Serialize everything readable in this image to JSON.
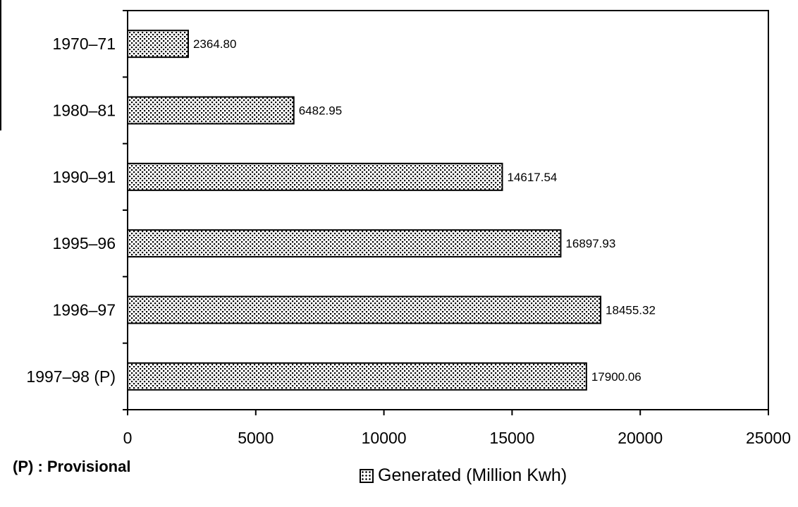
{
  "chart_data": {
    "type": "bar",
    "orientation": "horizontal",
    "categories": [
      "1970–71",
      "1980–81",
      "1990–91",
      "1995–96",
      "1996–97",
      "1997–98 (P)"
    ],
    "series": [
      {
        "name": "Generated (Million Kwh)",
        "values": [
          2364.8,
          6482.95,
          14617.54,
          16897.93,
          18455.32,
          17900.06
        ]
      }
    ],
    "data_labels": [
      "2364.80",
      "6482.95",
      "14617.54",
      "16897.93",
      "18455.32",
      "17900.06"
    ],
    "xlim": [
      0,
      25000
    ],
    "x_ticks": [
      0,
      5000,
      10000,
      15000,
      20000,
      25000
    ],
    "grid": false,
    "legend_position": "bottom-center",
    "fill_pattern": "dotted-hatch"
  },
  "footnote": "(P) : Provisional",
  "legend": {
    "label": "Generated (Million Kwh)"
  }
}
